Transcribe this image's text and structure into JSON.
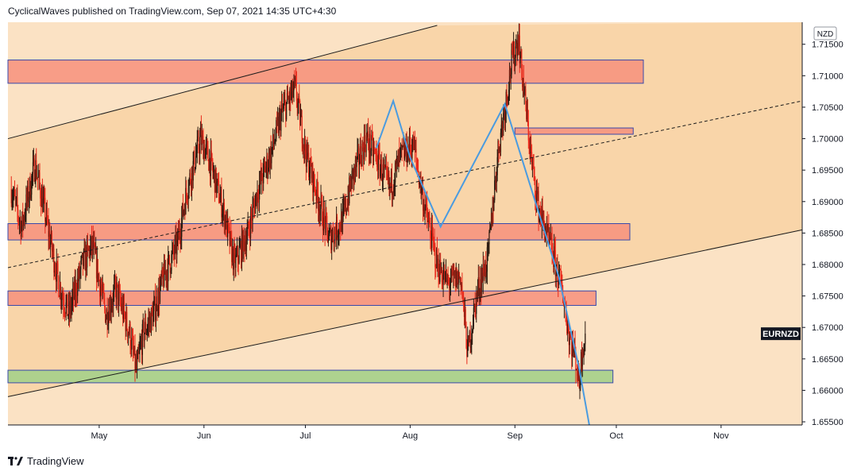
{
  "header": {
    "published_text": "CyclicalWaves published on TradingView.com, Sep 07, 2021 14:35 UTC+4:30"
  },
  "footer": {
    "brand": "TradingView"
  },
  "colors": {
    "background": "#fbe2c4",
    "channel_fill": "#f9d5a9",
    "resistance_zone": "#f7917c",
    "support_zone": "#a5d08a",
    "zone_border": "#3949ab",
    "candle_up": "#2b1a10",
    "candle_down": "#e8281a",
    "projection_line": "#4a9be0"
  },
  "chart_data": {
    "type": "candlestick",
    "symbol_label": "EURNZD",
    "currency": "NZD",
    "last_price": 1.669,
    "x_axis": {
      "tick_labels": [
        "May",
        "Jun",
        "Jul",
        "Aug",
        "Sep",
        "Oct",
        "Nov"
      ],
      "range_dates": [
        "2021-04-04",
        "2021-11-25"
      ]
    },
    "y_axis": {
      "range": [
        1.6545,
        1.7185
      ],
      "tick_labels": [
        "1.71500",
        "1.71000",
        "1.70500",
        "1.70000",
        "1.69500",
        "1.69000",
        "1.68500",
        "1.68000",
        "1.67500",
        "1.67000",
        "1.66500",
        "1.66000",
        "1.65500"
      ]
    },
    "price_path": [
      [
        "2021-04-05",
        1.692
      ],
      [
        "2021-04-08",
        1.686
      ],
      [
        "2021-04-12",
        1.696
      ],
      [
        "2021-04-15",
        1.688
      ],
      [
        "2021-04-19",
        1.677
      ],
      [
        "2021-04-22",
        1.672
      ],
      [
        "2021-04-26",
        1.68
      ],
      [
        "2021-04-29",
        1.683
      ],
      [
        "2021-05-03",
        1.672
      ],
      [
        "2021-05-06",
        1.676
      ],
      [
        "2021-05-10",
        1.669
      ],
      [
        "2021-05-12",
        1.663
      ],
      [
        "2021-05-14",
        1.669
      ],
      [
        "2021-05-17",
        1.672
      ],
      [
        "2021-05-20",
        1.678
      ],
      [
        "2021-05-24",
        1.683
      ],
      [
        "2021-05-27",
        1.692
      ],
      [
        "2021-05-31",
        1.7
      ],
      [
        "2021-06-03",
        1.696
      ],
      [
        "2021-06-07",
        1.688
      ],
      [
        "2021-06-10",
        1.68
      ],
      [
        "2021-06-14",
        1.685
      ],
      [
        "2021-06-17",
        1.692
      ],
      [
        "2021-06-21",
        1.698
      ],
      [
        "2021-06-24",
        1.704
      ],
      [
        "2021-06-28",
        1.708
      ],
      [
        "2021-07-01",
        1.698
      ],
      [
        "2021-07-05",
        1.69
      ],
      [
        "2021-07-08",
        1.684
      ],
      [
        "2021-07-12",
        1.687
      ],
      [
        "2021-07-15",
        1.694
      ],
      [
        "2021-07-19",
        1.7
      ],
      [
        "2021-07-22",
        1.697
      ],
      [
        "2021-07-26",
        1.692
      ],
      [
        "2021-07-29",
        1.697
      ],
      [
        "2021-08-02",
        1.699
      ],
      [
        "2021-08-05",
        1.69
      ],
      [
        "2021-08-09",
        1.68
      ],
      [
        "2021-08-12",
        1.677
      ],
      [
        "2021-08-16",
        1.678
      ],
      [
        "2021-08-18",
        1.666
      ],
      [
        "2021-08-21",
        1.676
      ],
      [
        "2021-08-24",
        1.681
      ],
      [
        "2021-08-27",
        1.698
      ],
      [
        "2021-08-31",
        1.712
      ],
      [
        "2021-09-02",
        1.716
      ],
      [
        "2021-09-04",
        1.706
      ],
      [
        "2021-09-06",
        1.696
      ],
      [
        "2021-09-08",
        1.689
      ],
      [
        "2021-09-12",
        1.682
      ],
      [
        "2021-09-15",
        1.676
      ],
      [
        "2021-09-17",
        1.669
      ],
      [
        "2021-09-19",
        1.665
      ],
      [
        "2021-09-20",
        1.661
      ],
      [
        "2021-09-21",
        1.667
      ],
      [
        "2021-09-22",
        1.669
      ]
    ],
    "zones": [
      {
        "kind": "resistance",
        "from": "2021-04-04",
        "to": "2021-10-09",
        "ymin": 1.7088,
        "ymax": 1.7125
      },
      {
        "kind": "resistance",
        "from": "2021-09-01",
        "to": "2021-10-06",
        "ymin": 1.7007,
        "ymax": 1.7017
      },
      {
        "kind": "resistance",
        "from": "2021-04-04",
        "to": "2021-10-05",
        "ymin": 1.6839,
        "ymax": 1.6865
      },
      {
        "kind": "resistance",
        "from": "2021-04-04",
        "to": "2021-09-25",
        "ymin": 1.6735,
        "ymax": 1.6758
      },
      {
        "kind": "support",
        "from": "2021-04-04",
        "to": "2021-09-30",
        "ymin": 1.6612,
        "ymax": 1.6632
      }
    ],
    "trendlines": [
      {
        "style": "solid",
        "from": [
          "2021-04-04",
          1.7
        ],
        "to": [
          "2021-08-09",
          1.718
        ]
      },
      {
        "style": "solid",
        "from": [
          "2021-04-04",
          1.659
        ],
        "to": [
          "2021-11-25",
          1.6855
        ]
      },
      {
        "style": "dashed",
        "from": [
          "2021-04-04",
          1.6795
        ],
        "to": [
          "2021-11-25",
          1.706
        ]
      }
    ],
    "projection_path": [
      [
        "2021-07-22",
        1.6985
      ],
      [
        "2021-07-27",
        1.706
      ],
      [
        "2021-08-01",
        1.697
      ],
      [
        "2021-08-10",
        1.686
      ],
      [
        "2021-08-29",
        1.7055
      ],
      [
        "2021-09-14",
        1.678
      ],
      [
        "2021-09-20",
        1.6635
      ],
      [
        "2021-09-23",
        1.6545
      ]
    ]
  }
}
